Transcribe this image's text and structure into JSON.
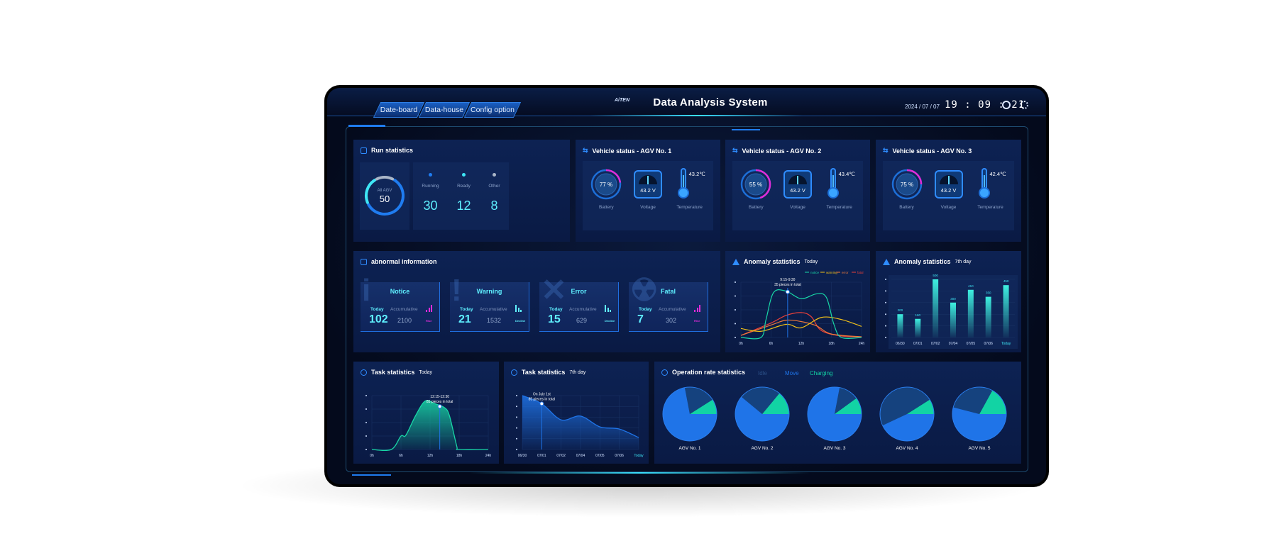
{
  "header": {
    "tabs": [
      "Date-board",
      "Data-house",
      "Config option"
    ],
    "logo": "AiTEN",
    "title": "Data Analysis System",
    "date": "2024 / 07 / 07",
    "time": "19 : 09 : 21",
    "icons": [
      "user-icon",
      "globe-icon"
    ]
  },
  "run": {
    "title": "Run statistics",
    "center_label": "All AGV",
    "total": "50",
    "items": [
      {
        "label": "Running",
        "value": "30",
        "color": "#1f7cf0"
      },
      {
        "label": "Ready",
        "value": "12",
        "color": "#3ee6f5"
      },
      {
        "label": "Other",
        "value": "8",
        "color": "#aab6c8"
      }
    ]
  },
  "vehicles": [
    {
      "title": "Vehicle status - AGV No. 1",
      "battery": "77 %",
      "battery_pct": 77,
      "voltage": "43.2 V",
      "temp": "43.2℃"
    },
    {
      "title": "Vehicle status - AGV No. 2",
      "battery": "55 %",
      "battery_pct": 55,
      "voltage": "43.2 V",
      "temp": "43.4℃"
    },
    {
      "title": "Vehicle status - AGV No. 3",
      "battery": "75 %",
      "battery_pct": 75,
      "voltage": "43.2 V",
      "temp": "42.4℃"
    }
  ],
  "vehicle_labels": {
    "battery": "Battery",
    "voltage": "Voltage",
    "temp": "Temperature"
  },
  "abnormal": {
    "title": "abnormal information",
    "today_label": "Today",
    "acc_label": "Accumulative",
    "cards": [
      {
        "name": "Notice",
        "glyph": "i",
        "today": "102",
        "acc": "2100",
        "trend": "Rise",
        "trend_color": "#e02bd8"
      },
      {
        "name": "Warning",
        "glyph": "!",
        "today": "21",
        "acc": "1532",
        "trend": "Decline",
        "trend_color": "#5ff0ff"
      },
      {
        "name": "Error",
        "glyph": "✕",
        "today": "15",
        "acc": "629",
        "trend": "Decline",
        "trend_color": "#5ff0ff"
      },
      {
        "name": "Fatal",
        "glyph": "☢",
        "today": "7",
        "acc": "302",
        "trend": "Rise",
        "trend_color": "#e02bd8"
      }
    ]
  },
  "anomaly_today": {
    "title": "Anomaly statistics",
    "sub": "Today",
    "tooltip": [
      "9:15-9:30",
      "35 pieces in total"
    ]
  },
  "anomaly_week": {
    "title": "Anomaly statistics",
    "sub": "7th day"
  },
  "task_today": {
    "title": "Task statistics",
    "sub": "Today",
    "tooltip": [
      "12:15-12:30",
      "85 pieces in total"
    ]
  },
  "task_week": {
    "title": "Task statistics",
    "sub": "7th day",
    "tooltip": [
      "On July 1st",
      "85 pieces in total"
    ]
  },
  "oprate": {
    "title": "Operation rate statistics",
    "legend": [
      {
        "label": "Idle",
        "color": "#15427e"
      },
      {
        "label": "Move",
        "color": "#1f74e8"
      },
      {
        "label": "Charging",
        "color": "#12d3a4"
      }
    ]
  },
  "chart_data": [
    {
      "type": "line",
      "xlabels": [
        "0h",
        "6h",
        "12h",
        "18h",
        "24h"
      ],
      "xlim": [
        0,
        24
      ],
      "ylim": [
        0,
        80
      ],
      "legend": "top-right",
      "series": [
        {
          "name": "notice",
          "color": "#18d6a6",
          "x": [
            0,
            4,
            5,
            6.5,
            9,
            12,
            15,
            17,
            18.5,
            20,
            24
          ],
          "y": [
            0,
            0,
            26,
            65,
            67,
            56,
            63,
            58,
            19,
            0,
            0
          ]
        },
        {
          "name": "warning",
          "color": "#f2c018",
          "x": [
            0,
            4,
            9,
            12,
            16,
            20,
            24
          ],
          "y": [
            13,
            9,
            19,
            14,
            29,
            26,
            16
          ]
        },
        {
          "name": "error",
          "color": "#f07a3a",
          "x": [
            0,
            6,
            9,
            12,
            15,
            18,
            24
          ],
          "y": [
            3,
            18,
            25,
            23,
            17,
            5,
            1
          ]
        },
        {
          "name": "fatal",
          "color": "#e8403a",
          "x": [
            0,
            6,
            9,
            12,
            14,
            16,
            20,
            24
          ],
          "y": [
            3,
            21,
            32,
            36,
            30,
            10,
            2,
            1
          ]
        }
      ],
      "marker_x": 9.3
    },
    {
      "type": "bar",
      "categories": [
        "06/30",
        "07/01",
        "07/02",
        "07/04",
        "07/05",
        "07/06",
        "Today"
      ],
      "values": [
        200,
        160,
        500,
        300,
        410,
        350,
        450
      ],
      "ylim": [
        0,
        500
      ]
    },
    {
      "type": "area",
      "xlabels": [
        "0h",
        "6h",
        "12h",
        "18h",
        "24h"
      ],
      "xlim": [
        0,
        24
      ],
      "ylim": [
        0,
        80
      ],
      "x": [
        0,
        4,
        6,
        7,
        9,
        11,
        13,
        15,
        16,
        17.5,
        18,
        24
      ],
      "y": [
        0,
        0,
        20,
        21,
        50,
        72,
        68,
        62,
        50,
        5,
        0,
        0
      ],
      "marker_x": 14,
      "color": "#18d6a6"
    },
    {
      "type": "area",
      "categories": [
        "06/30",
        "07/01",
        "07/02",
        "07/04",
        "07/05",
        "07/06",
        "Today"
      ],
      "values": [
        100,
        85,
        55,
        62,
        42,
        38,
        22
      ],
      "ylim": [
        0,
        100
      ],
      "marker_index": 1,
      "color": "#1f74e8"
    },
    {
      "type": "pie",
      "series": [
        "Idle",
        "Move",
        "Charging"
      ],
      "items": [
        {
          "name": "AGV No. 1",
          "charging": 9,
          "idle": 19,
          "move": 72
        },
        {
          "name": "AGV No. 2",
          "charging": 14,
          "idle": 25,
          "move": 61
        },
        {
          "name": "AGV No. 3",
          "charging": 10,
          "idle": 12,
          "move": 78
        },
        {
          "name": "AGV No. 4",
          "charging": 9,
          "idle": 48,
          "move": 43
        },
        {
          "name": "AGV No. 5",
          "charging": 17,
          "idle": 29,
          "move": 54
        }
      ]
    }
  ]
}
